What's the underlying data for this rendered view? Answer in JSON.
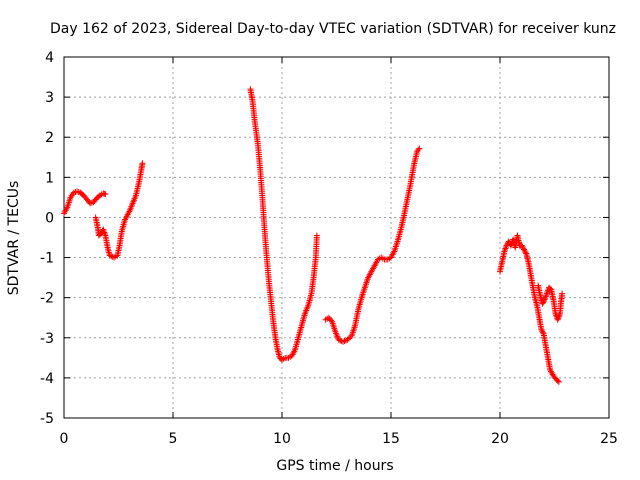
{
  "chart_data": {
    "type": "scatter",
    "title": "Day 162 of 2023, Sidereal Day-to-day VTEC variation (SDTVAR) for receiver kunz",
    "xlabel": "GPS time / hours",
    "ylabel": "SDTVAR / TECUs",
    "xlim": [
      0,
      25
    ],
    "ylim": [
      -5,
      4
    ],
    "xticks": [
      0,
      5,
      10,
      15,
      20,
      25
    ],
    "yticks": [
      -5,
      -4,
      -3,
      -2,
      -1,
      0,
      1,
      2,
      3,
      4
    ],
    "grid": true,
    "marker": "+",
    "series_color": "#ff0000",
    "segments": [
      [
        [
          0.0,
          0.1
        ],
        [
          0.15,
          0.25
        ],
        [
          0.3,
          0.5
        ],
        [
          0.45,
          0.62
        ],
        [
          0.6,
          0.65
        ],
        [
          0.75,
          0.62
        ],
        [
          0.9,
          0.55
        ],
        [
          1.05,
          0.45
        ],
        [
          1.2,
          0.35
        ],
        [
          1.35,
          0.38
        ],
        [
          1.5,
          0.48
        ],
        [
          1.65,
          0.55
        ],
        [
          1.8,
          0.6
        ],
        [
          1.9,
          0.58
        ]
      ],
      [
        [
          1.45,
          0.0
        ],
        [
          1.55,
          -0.25
        ],
        [
          1.6,
          -0.45
        ],
        [
          1.7,
          -0.4
        ],
        [
          1.8,
          -0.3
        ],
        [
          1.9,
          -0.45
        ],
        [
          2.0,
          -0.75
        ],
        [
          2.1,
          -0.95
        ],
        [
          2.3,
          -1.0
        ],
        [
          2.45,
          -0.95
        ],
        [
          2.55,
          -0.7
        ],
        [
          2.65,
          -0.35
        ],
        [
          2.8,
          -0.05
        ],
        [
          3.0,
          0.15
        ],
        [
          3.15,
          0.35
        ],
        [
          3.3,
          0.55
        ],
        [
          3.45,
          0.9
        ],
        [
          3.55,
          1.2
        ],
        [
          3.6,
          1.35
        ]
      ],
      [
        [
          8.55,
          3.2
        ],
        [
          8.65,
          2.9
        ],
        [
          8.75,
          2.4
        ],
        [
          8.9,
          1.8
        ],
        [
          9.0,
          1.2
        ],
        [
          9.1,
          0.5
        ],
        [
          9.2,
          -0.3
        ],
        [
          9.3,
          -1.0
        ],
        [
          9.4,
          -1.6
        ],
        [
          9.5,
          -2.1
        ],
        [
          9.6,
          -2.6
        ],
        [
          9.7,
          -3.0
        ],
        [
          9.8,
          -3.3
        ],
        [
          9.9,
          -3.5
        ],
        [
          10.0,
          -3.55
        ],
        [
          10.15,
          -3.5
        ],
        [
          10.3,
          -3.5
        ],
        [
          10.45,
          -3.45
        ],
        [
          10.6,
          -3.3
        ],
        [
          10.75,
          -3.0
        ],
        [
          10.9,
          -2.7
        ],
        [
          11.05,
          -2.4
        ],
        [
          11.2,
          -2.2
        ],
        [
          11.35,
          -1.9
        ],
        [
          11.45,
          -1.5
        ],
        [
          11.55,
          -1.0
        ],
        [
          11.6,
          -0.45
        ]
      ],
      [
        [
          12.0,
          -2.55
        ],
        [
          12.15,
          -2.5
        ],
        [
          12.3,
          -2.6
        ],
        [
          12.45,
          -2.85
        ],
        [
          12.6,
          -3.05
        ],
        [
          12.8,
          -3.1
        ],
        [
          13.0,
          -3.05
        ],
        [
          13.2,
          -2.95
        ],
        [
          13.35,
          -2.7
        ],
        [
          13.5,
          -2.3
        ],
        [
          13.65,
          -2.0
        ],
        [
          13.8,
          -1.75
        ],
        [
          13.95,
          -1.5
        ],
        [
          14.1,
          -1.35
        ],
        [
          14.25,
          -1.2
        ],
        [
          14.4,
          -1.05
        ],
        [
          14.55,
          -1.0
        ],
        [
          14.7,
          -1.05
        ],
        [
          14.85,
          -1.05
        ],
        [
          15.0,
          -1.0
        ],
        [
          15.15,
          -0.85
        ],
        [
          15.3,
          -0.6
        ],
        [
          15.45,
          -0.3
        ],
        [
          15.6,
          0.05
        ],
        [
          15.75,
          0.45
        ],
        [
          15.9,
          0.85
        ],
        [
          16.05,
          1.3
        ],
        [
          16.2,
          1.65
        ],
        [
          16.3,
          1.72
        ]
      ],
      [
        [
          20.0,
          -1.35
        ],
        [
          20.1,
          -1.1
        ],
        [
          20.2,
          -0.85
        ],
        [
          20.3,
          -0.7
        ],
        [
          20.4,
          -0.6
        ],
        [
          20.5,
          -0.7
        ],
        [
          20.6,
          -0.55
        ],
        [
          20.7,
          -0.75
        ],
        [
          20.8,
          -0.45
        ],
        [
          20.9,
          -0.7
        ],
        [
          21.0,
          -0.7
        ],
        [
          21.1,
          -0.8
        ],
        [
          21.2,
          -0.9
        ],
        [
          21.3,
          -1.1
        ],
        [
          21.4,
          -1.4
        ],
        [
          21.5,
          -1.7
        ],
        [
          21.6,
          -2.0
        ],
        [
          21.7,
          -2.2
        ],
        [
          21.8,
          -2.5
        ],
        [
          21.9,
          -2.8
        ],
        [
          22.0,
          -2.9
        ],
        [
          22.1,
          -3.2
        ],
        [
          22.2,
          -3.5
        ],
        [
          22.3,
          -3.8
        ],
        [
          22.45,
          -3.95
        ],
        [
          22.6,
          -4.05
        ],
        [
          22.7,
          -4.1
        ]
      ],
      [
        [
          21.75,
          -1.7
        ],
        [
          21.85,
          -1.95
        ],
        [
          21.95,
          -2.15
        ],
        [
          22.05,
          -2.05
        ],
        [
          22.15,
          -1.9
        ],
        [
          22.25,
          -1.75
        ],
        [
          22.35,
          -1.8
        ],
        [
          22.45,
          -2.05
        ],
        [
          22.55,
          -2.4
        ],
        [
          22.65,
          -2.55
        ],
        [
          22.75,
          -2.4
        ],
        [
          22.8,
          -2.1
        ],
        [
          22.85,
          -1.9
        ]
      ]
    ]
  }
}
